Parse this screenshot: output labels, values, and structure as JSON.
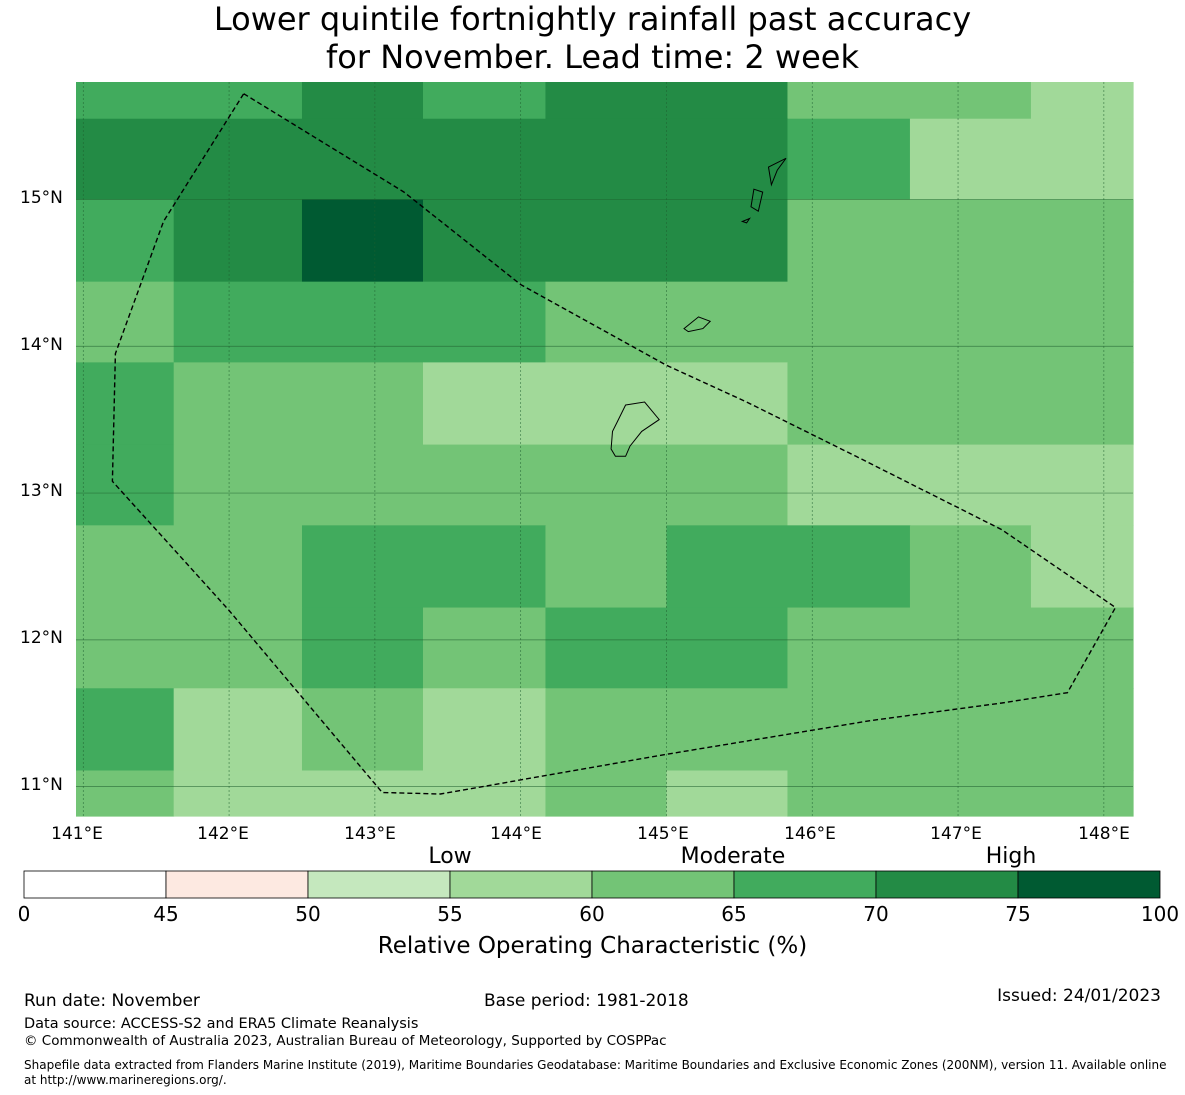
{
  "title": {
    "line1": "Lower quintile fortnightly rainfall past accuracy",
    "line2": "for November. Lead time: 2 week"
  },
  "map": {
    "lat_labels": [
      "15°N",
      "14°N",
      "13°N",
      "12°N",
      "11°N"
    ],
    "lon_labels": [
      "141°E",
      "142°E",
      "143°E",
      "144°E",
      "145°E",
      "146°E",
      "147°E",
      "148°E"
    ],
    "extent": {
      "lon_min": 140.95,
      "lon_max": 148.2,
      "lat_min": 10.8,
      "lat_max": 15.8
    },
    "grid_rows": [
      {
        "lat_top": 15.8,
        "lat_bottom": 15.55,
        "cells": [
          {
            "lon_start": 140.95,
            "lon_end": 142.5,
            "roc": 67.5
          },
          {
            "lon_start": 142.5,
            "lon_end": 143.33,
            "roc": 72.5
          },
          {
            "lon_start": 143.33,
            "lon_end": 144.17,
            "roc": 67.5
          },
          {
            "lon_start": 144.17,
            "lon_end": 145.83,
            "roc": 72.5
          },
          {
            "lon_start": 145.83,
            "lon_end": 147.5,
            "roc": 62.5
          },
          {
            "lon_start": 147.5,
            "lon_end": 148.2,
            "roc": 57.5
          }
        ]
      },
      {
        "lat_top": 15.55,
        "lat_bottom": 15.0,
        "cells": [
          {
            "lon_start": 140.95,
            "lon_end": 145.83,
            "roc": 72.5
          },
          {
            "lon_start": 145.83,
            "lon_end": 146.67,
            "roc": 67.5
          },
          {
            "lon_start": 146.67,
            "lon_end": 148.2,
            "roc": 57.5
          }
        ]
      },
      {
        "lat_top": 15.0,
        "lat_bottom": 14.44,
        "cells": [
          {
            "lon_start": 140.95,
            "lon_end": 141.62,
            "roc": 67.5
          },
          {
            "lon_start": 141.62,
            "lon_end": 142.5,
            "roc": 72.5
          },
          {
            "lon_start": 142.5,
            "lon_end": 143.33,
            "roc": 77.5
          },
          {
            "lon_start": 143.33,
            "lon_end": 145.83,
            "roc": 72.5
          },
          {
            "lon_start": 145.83,
            "lon_end": 148.2,
            "roc": 62.5
          }
        ]
      },
      {
        "lat_top": 14.44,
        "lat_bottom": 13.89,
        "cells": [
          {
            "lon_start": 140.95,
            "lon_end": 141.62,
            "roc": 62.5
          },
          {
            "lon_start": 141.62,
            "lon_end": 144.17,
            "roc": 67.5
          },
          {
            "lon_start": 144.17,
            "lon_end": 148.2,
            "roc": 62.5
          }
        ]
      },
      {
        "lat_top": 13.89,
        "lat_bottom": 13.33,
        "cells": [
          {
            "lon_start": 140.95,
            "lon_end": 141.62,
            "roc": 67.5
          },
          {
            "lon_start": 141.62,
            "lon_end": 143.33,
            "roc": 62.5
          },
          {
            "lon_start": 143.33,
            "lon_end": 145.83,
            "roc": 57.5
          },
          {
            "lon_start": 145.83,
            "lon_end": 148.2,
            "roc": 62.5
          }
        ]
      },
      {
        "lat_top": 13.33,
        "lat_bottom": 12.78,
        "cells": [
          {
            "lon_start": 140.95,
            "lon_end": 141.62,
            "roc": 67.5
          },
          {
            "lon_start": 141.62,
            "lon_end": 145.83,
            "roc": 62.5
          },
          {
            "lon_start": 145.83,
            "lon_end": 148.2,
            "roc": 57.5
          }
        ]
      },
      {
        "lat_top": 12.78,
        "lat_bottom": 12.22,
        "cells": [
          {
            "lon_start": 140.95,
            "lon_end": 142.5,
            "roc": 62.5
          },
          {
            "lon_start": 142.5,
            "lon_end": 144.17,
            "roc": 67.5
          },
          {
            "lon_start": 144.17,
            "lon_end": 145.0,
            "roc": 62.5
          },
          {
            "lon_start": 145.0,
            "lon_end": 146.67,
            "roc": 67.5
          },
          {
            "lon_start": 146.67,
            "lon_end": 147.5,
            "roc": 62.5
          },
          {
            "lon_start": 147.5,
            "lon_end": 148.2,
            "roc": 57.5
          }
        ]
      },
      {
        "lat_top": 12.22,
        "lat_bottom": 11.67,
        "cells": [
          {
            "lon_start": 140.95,
            "lon_end": 142.5,
            "roc": 62.5
          },
          {
            "lon_start": 142.5,
            "lon_end": 143.33,
            "roc": 67.5
          },
          {
            "lon_start": 143.33,
            "lon_end": 144.17,
            "roc": 62.5
          },
          {
            "lon_start": 144.17,
            "lon_end": 145.83,
            "roc": 67.5
          },
          {
            "lon_start": 145.83,
            "lon_end": 148.2,
            "roc": 62.5
          }
        ]
      },
      {
        "lat_top": 11.67,
        "lat_bottom": 11.11,
        "cells": [
          {
            "lon_start": 140.95,
            "lon_end": 141.62,
            "roc": 67.5
          },
          {
            "lon_start": 141.62,
            "lon_end": 142.5,
            "roc": 57.5
          },
          {
            "lon_start": 142.5,
            "lon_end": 143.33,
            "roc": 62.5
          },
          {
            "lon_start": 143.33,
            "lon_end": 144.17,
            "roc": 57.5
          },
          {
            "lon_start": 144.17,
            "lon_end": 148.2,
            "roc": 62.5
          }
        ]
      },
      {
        "lat_top": 11.11,
        "lat_bottom": 10.8,
        "cells": [
          {
            "lon_start": 140.95,
            "lon_end": 141.62,
            "roc": 62.5
          },
          {
            "lon_start": 141.62,
            "lon_end": 144.17,
            "roc": 57.5
          },
          {
            "lon_start": 144.17,
            "lon_end": 145.0,
            "roc": 62.5
          },
          {
            "lon_start": 145.0,
            "lon_end": 145.83,
            "roc": 57.5
          },
          {
            "lon_start": 145.83,
            "lon_end": 148.2,
            "roc": 62.5
          }
        ]
      }
    ],
    "eez_boundary": [
      [
        142.1,
        15.72
      ],
      [
        143.2,
        15.05
      ],
      [
        144.0,
        14.42
      ],
      [
        145.0,
        13.87
      ],
      [
        145.55,
        13.62
      ],
      [
        146.3,
        13.25
      ],
      [
        147.3,
        12.75
      ],
      [
        148.08,
        12.22
      ],
      [
        147.75,
        11.64
      ],
      [
        147.3,
        11.57
      ],
      [
        146.4,
        11.45
      ],
      [
        145.0,
        11.22
      ],
      [
        143.45,
        10.95
      ],
      [
        143.05,
        10.96
      ],
      [
        142.0,
        12.2
      ],
      [
        141.2,
        13.08
      ],
      [
        141.22,
        13.95
      ],
      [
        141.55,
        14.85
      ],
      [
        142.1,
        15.72
      ]
    ],
    "islands": [
      {
        "name": "Guam",
        "shape": [
          [
            144.72,
            13.6
          ],
          [
            144.85,
            13.62
          ],
          [
            144.95,
            13.5
          ],
          [
            144.83,
            13.42
          ],
          [
            144.75,
            13.32
          ],
          [
            144.72,
            13.25
          ],
          [
            144.65,
            13.25
          ],
          [
            144.62,
            13.3
          ],
          [
            144.63,
            13.42
          ],
          [
            144.66,
            13.48
          ],
          [
            144.72,
            13.6
          ]
        ]
      },
      {
        "name": "Rota",
        "shape": [
          [
            145.12,
            14.12
          ],
          [
            145.22,
            14.2
          ],
          [
            145.3,
            14.17
          ],
          [
            145.25,
            14.12
          ],
          [
            145.15,
            14.1
          ],
          [
            145.12,
            14.12
          ]
        ]
      },
      {
        "name": "Tinian",
        "shape": [
          [
            145.6,
            15.07
          ],
          [
            145.66,
            15.05
          ],
          [
            145.63,
            14.92
          ],
          [
            145.58,
            14.95
          ],
          [
            145.6,
            15.07
          ]
        ]
      },
      {
        "name": "Saipan",
        "shape": [
          [
            145.7,
            15.22
          ],
          [
            145.82,
            15.28
          ],
          [
            145.76,
            15.2
          ],
          [
            145.72,
            15.1
          ],
          [
            145.7,
            15.22
          ]
        ]
      },
      {
        "name": "Aguijan",
        "shape": [
          [
            145.52,
            14.85
          ],
          [
            145.57,
            14.87
          ],
          [
            145.55,
            14.84
          ],
          [
            145.52,
            14.85
          ]
        ]
      }
    ]
  },
  "colorbar": {
    "category_labels": [
      "Low",
      "Moderate",
      "High"
    ],
    "bins": [
      {
        "from": 0,
        "to": 45,
        "color": "#ffffff"
      },
      {
        "from": 45,
        "to": 50,
        "color": "#fde9e1"
      },
      {
        "from": 50,
        "to": 55,
        "color": "#c5e8be"
      },
      {
        "from": 55,
        "to": 60,
        "color": "#a1d999"
      },
      {
        "from": 60,
        "to": 65,
        "color": "#73c476"
      },
      {
        "from": 65,
        "to": 70,
        "color": "#41ab5d"
      },
      {
        "from": 70,
        "to": 75,
        "color": "#238b45"
      },
      {
        "from": 75,
        "to": 100,
        "color": "#005a32"
      }
    ],
    "ticks": [
      "0",
      "45",
      "50",
      "55",
      "60",
      "65",
      "70",
      "75",
      "100"
    ],
    "label": "Relative Operating Characteristic (%)"
  },
  "footer": {
    "run_date": "Run date: November",
    "base_period": "Base period: 1981-2018",
    "issued": "Issued: 24/01/2023",
    "data_source": "Data source: ACCESS-S2 and ERA5 Climate Reanalysis",
    "copyright": "© Commonwealth of Australia 2023, Australian Bureau of Meteorology, Supported by COSPPac",
    "shapefile_note": "Shapefile data extracted from Flanders Marine Institute (2019), Maritime Boundaries Geodatabase: Maritime Boundaries and Exclusive Economic Zones (200NM), version 11. Available online at http://www.marineregions.org/."
  }
}
